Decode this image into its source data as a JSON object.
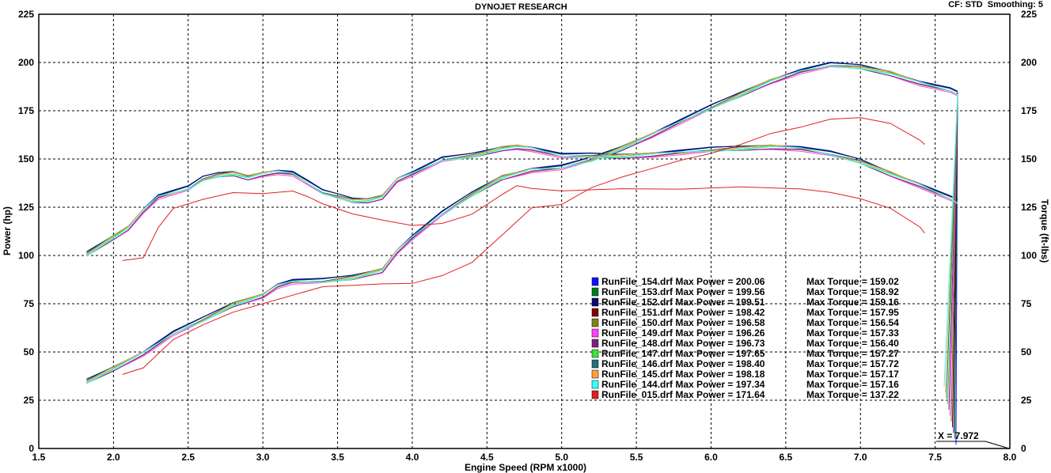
{
  "header": {
    "title": "DYNOJET RESEARCH",
    "settings": "CF: STD  Smoothing: 5"
  },
  "cursor_readout": "X = 7.972",
  "chart_data": {
    "type": "line",
    "title": "DYNOJET RESEARCH",
    "xlabel": "Engine Speed (RPM x1000)",
    "ylabel": "Power (hp)",
    "y2label": "Torque (ft-lbs)",
    "xlim": [
      1.5,
      8.0
    ],
    "ylim": [
      0,
      225
    ],
    "y2lim": [
      0,
      225
    ],
    "x_ticks": [
      "1.5",
      "2.0",
      "2.5",
      "3.0",
      "3.5",
      "4.0",
      "4.5",
      "5.0",
      "5.5",
      "6.0",
      "6.5",
      "7.0",
      "7.5",
      "8.0"
    ],
    "y_ticks": [
      "0",
      "25",
      "50",
      "75",
      "100",
      "125",
      "150",
      "175",
      "200",
      "225"
    ],
    "grid": true,
    "legend_position": "center-right",
    "series": [
      {
        "name": "RunFile_154.drf Max Power = 200.06",
        "torque_label": "Max Torque = 159.02",
        "color": "#1010ff",
        "offset": 0.6
      },
      {
        "name": "RunFile_153.drf Max Power = 199.56",
        "torque_label": "Max Torque = 158.92",
        "color": "#007a20",
        "offset": 0.4
      },
      {
        "name": "RunFile_152.drf Max Power = 199.51",
        "torque_label": "Max Torque = 159.16",
        "color": "#0a0a70",
        "offset": 0.5
      },
      {
        "name": "RunFile_151.drf Max Power = 198.42",
        "torque_label": "Max Torque = 157.95",
        "color": "#800000",
        "offset": -0.3
      },
      {
        "name": "RunFile_150.drf Max Power = 196.58",
        "torque_label": "Max Torque = 156.54",
        "color": "#808020",
        "offset": -1.3
      },
      {
        "name": "RunFile_149.drf Max Power = 196.26",
        "torque_label": "Max Torque = 157.33",
        "color": "#ff40ff",
        "offset": -1.6
      },
      {
        "name": "RunFile_148.drf Max Power = 196.73",
        "torque_label": "Max Torque = 156.40",
        "color": "#802080",
        "offset": -1.2
      },
      {
        "name": "RunFile_147.drf Max Power = 197.65",
        "torque_label": "Max Torque = 157.27",
        "color": "#40e040",
        "offset": -0.6
      },
      {
        "name": "RunFile_146.drf Max Power = 198.40",
        "torque_label": "Max Torque = 157.72",
        "color": "#207080",
        "offset": -0.1
      },
      {
        "name": "RunFile_145.drf Max Power = 198.18",
        "torque_label": "Max Torque = 157.17",
        "color": "#ffa040",
        "offset": -0.3
      },
      {
        "name": "RunFile_144.drf Max Power = 197.34",
        "torque_label": "Max Torque = 157.16",
        "color": "#40ffff",
        "offset": -0.8
      },
      {
        "name": "RunFile_015.drf Max Power = 171.64",
        "torque_label": "Max Torque = 137.22",
        "color": "#e02020",
        "offset": 0
      }
    ],
    "power_curve": {
      "x": [
        1.82,
        2.0,
        2.2,
        2.4,
        2.6,
        2.8,
        3.0,
        3.1,
        3.2,
        3.4,
        3.6,
        3.8,
        3.9,
        4.0,
        4.2,
        4.4,
        4.6,
        4.8,
        5.0,
        5.2,
        5.4,
        5.6,
        5.8,
        6.0,
        6.2,
        6.4,
        6.6,
        6.8,
        7.0,
        7.2,
        7.4,
        7.6,
        7.65
      ],
      "y": [
        35,
        42,
        50,
        60,
        67,
        75,
        80,
        85,
        87,
        87,
        89,
        93,
        103,
        110,
        122,
        132,
        141,
        145,
        146,
        150,
        156,
        163,
        170,
        177,
        184,
        191,
        196,
        199,
        198,
        195,
        190,
        186,
        184
      ]
    },
    "torque_curve": {
      "x": [
        1.82,
        2.0,
        2.1,
        2.2,
        2.3,
        2.4,
        2.5,
        2.6,
        2.7,
        2.8,
        2.9,
        3.0,
        3.1,
        3.2,
        3.3,
        3.4,
        3.5,
        3.6,
        3.7,
        3.8,
        3.9,
        4.0,
        4.2,
        4.4,
        4.6,
        4.7,
        4.8,
        5.0,
        5.2,
        5.4,
        5.6,
        5.8,
        6.0,
        6.2,
        6.4,
        6.6,
        6.8,
        7.0,
        7.2,
        7.4,
        7.6,
        7.65
      ],
      "y": [
        101,
        110,
        115,
        124,
        131,
        133,
        135,
        140,
        142,
        143,
        141,
        143,
        144,
        143,
        138,
        133,
        131,
        129,
        129,
        131,
        140,
        143,
        150,
        152,
        156,
        157,
        156,
        152,
        152,
        152,
        153,
        154,
        155,
        156,
        157,
        156,
        153,
        149,
        143,
        137,
        130,
        128
      ]
    },
    "run015_power": {
      "x": [
        2.06,
        2.2,
        2.4,
        2.6,
        2.8,
        3.0,
        3.2,
        3.4,
        3.6,
        3.8,
        4.0,
        4.2,
        4.4,
        4.6,
        4.8,
        5.0,
        5.2,
        5.4,
        5.6,
        5.8,
        6.0,
        6.2,
        6.4,
        6.6,
        6.8,
        7.0,
        7.2,
        7.4,
        7.43
      ],
      "y": [
        38,
        42,
        57,
        64,
        70,
        75,
        80,
        84,
        84,
        85,
        86,
        90,
        96,
        110,
        125,
        127,
        135,
        140,
        145,
        150,
        153,
        157,
        163,
        167,
        171,
        171,
        168,
        160,
        158
      ]
    },
    "run015_torque": {
      "x": [
        2.06,
        2.2,
        2.3,
        2.4,
        2.6,
        2.8,
        3.0,
        3.2,
        3.3,
        3.4,
        3.6,
        3.8,
        4.0,
        4.2,
        4.4,
        4.6,
        4.7,
        4.8,
        5.0,
        5.4,
        5.8,
        6.2,
        6.6,
        6.8,
        7.0,
        7.2,
        7.4,
        7.43
      ],
      "y": [
        97,
        99,
        115,
        125,
        129,
        132,
        132,
        134,
        131,
        127,
        121,
        118,
        116,
        117,
        121,
        131,
        136,
        135,
        134,
        134,
        135,
        135,
        135,
        133,
        129,
        124,
        115,
        112
      ]
    }
  }
}
